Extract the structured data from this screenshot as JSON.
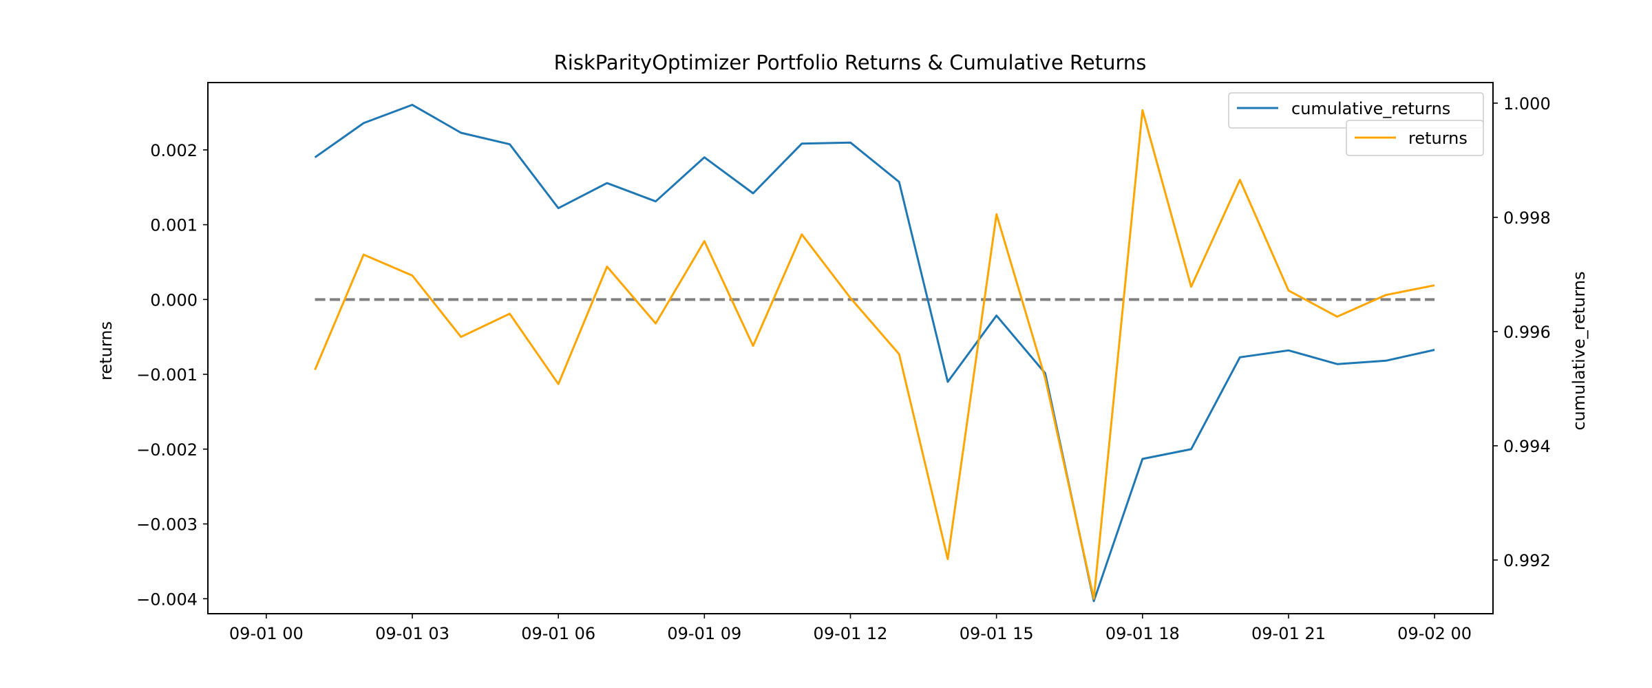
{
  "chart_data": {
    "type": "line",
    "title": "RiskParityOptimizer Portfolio Returns & Cumulative Returns",
    "xlabel": "",
    "ylabel_left": "returns",
    "ylabel_right": "cumulative_returns",
    "x": [
      "09-01 01:00",
      "09-01 02:00",
      "09-01 03:00",
      "09-01 04:00",
      "09-01 05:00",
      "09-01 06:00",
      "09-01 07:00",
      "09-01 08:00",
      "09-01 09:00",
      "09-01 10:00",
      "09-01 11:00",
      "09-01 12:00",
      "09-01 13:00",
      "09-01 14:00",
      "09-01 15:00",
      "09-01 16:00",
      "09-01 17:00",
      "09-01 18:00",
      "09-01 19:00",
      "09-01 20:00",
      "09-01 21:00",
      "09-01 22:00",
      "09-01 23:00",
      "09-02 00:00"
    ],
    "x_ticks": [
      "09-01 00",
      "09-01 03",
      "09-01 06",
      "09-01 09",
      "09-01 12",
      "09-01 15",
      "09-01 18",
      "09-01 21",
      "09-02 00"
    ],
    "x_range": [
      "09-01 00:00",
      "09-02 00:00"
    ],
    "y_left_ticks": [
      "0.002",
      "0.001",
      "0.000",
      "−0.001",
      "−0.002",
      "−0.003",
      "−0.004"
    ],
    "y_right_ticks": [
      "1.000",
      "0.998",
      "0.996",
      "0.994",
      "0.992"
    ],
    "y_left_range": [
      -0.0042,
      0.0029
    ],
    "y_right_range": [
      0.99106,
      1.00036
    ],
    "series": [
      {
        "name": "cumulative_returns",
        "axis": "right",
        "color": "#1f77b4",
        "values": [
          0.99905,
          0.99965,
          0.99997,
          0.99948,
          0.99928,
          0.99816,
          0.9986,
          0.99828,
          0.99905,
          0.99842,
          0.99929,
          0.99931,
          0.99862,
          0.99512,
          0.99628,
          0.99527,
          0.99128,
          0.99377,
          0.99394,
          0.99555,
          0.99567,
          0.99543,
          0.99549,
          0.99568
        ]
      },
      {
        "name": "returns",
        "axis": "left",
        "color": "#ffa500",
        "values": [
          -0.00094,
          0.0006,
          0.00032,
          -0.0005,
          -0.00019,
          -0.00113,
          0.00044,
          -0.00032,
          0.00078,
          -0.00062,
          0.00087,
          2e-05,
          -0.00073,
          -0.00347,
          0.00114,
          -0.00105,
          -0.004,
          0.00253,
          0.00017,
          0.0016,
          0.00012,
          -0.00023,
          6e-05,
          0.00019
        ]
      }
    ],
    "reference_line": {
      "value": 0.0,
      "axis": "left",
      "style": "dashed",
      "color": "#808080"
    },
    "grid": false,
    "legend_placement": "top-right"
  }
}
